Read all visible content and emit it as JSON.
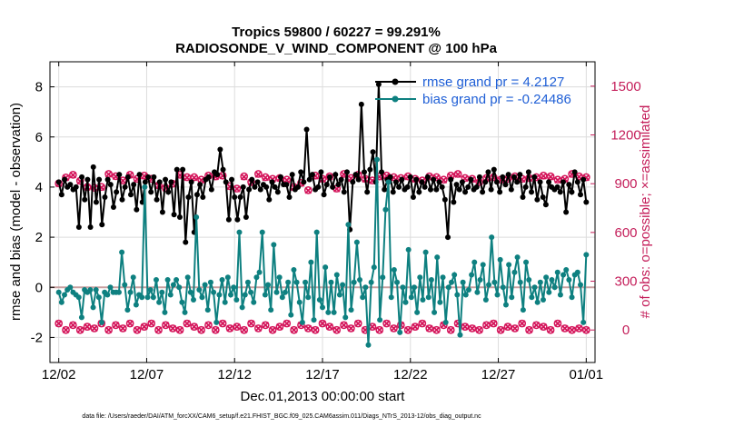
{
  "chart_data": {
    "type": "line",
    "title": "Tropics 59800 / 60227 = 99.291%",
    "subtitle": "RADIOSONDE_V_WIND_COMPONENT @ 100 hPa",
    "xlabel": "Dec.01,2013 00:00:00 start",
    "ylabel": "rmse and bias (model - observation)",
    "y2label": "# of obs: o=possible; ×=assimilated",
    "footnote": "data file: /Users/raeder/DAI/ATM_forcXX/CAM6_setup/f.e21.FHIST_BGC.f09_025.CAM6assim.011/Diags_NTrS_2013-12/obs_diag_output.nc",
    "x_ticks": [
      1,
      6,
      11,
      16,
      21,
      26,
      31
    ],
    "x_tick_labels": [
      "12/02",
      "12/07",
      "12/12",
      "12/17",
      "12/22",
      "12/27",
      "01/01"
    ],
    "xlim": [
      0.5,
      31.5
    ],
    "ylim": [
      -3,
      9
    ],
    "y_ticks": [
      -2,
      0,
      2,
      4,
      6,
      8
    ],
    "y2lim": [
      -200,
      1650
    ],
    "y2_ticks": [
      0,
      300,
      600,
      900,
      1200,
      1500
    ],
    "grid": true,
    "legend_position": "top-right",
    "colors": {
      "rmse": "#000000",
      "bias": "#0e8080",
      "obs": "#d4145a",
      "zero": "#c8a0a0",
      "legend_text": "#1f5fd6",
      "right_axis": "#c41e5a"
    },
    "series": [
      {
        "name": "rmse grand pr = 4.2127",
        "key": "rmse",
        "values": [
          4.2,
          3.7,
          4.3,
          4.0,
          4.1,
          3.9,
          4.0,
          2.4,
          4.4,
          3.5,
          4.3,
          2.4,
          4.8,
          3.4,
          4.3,
          2.5,
          3.6,
          4.3,
          4.1,
          3.2,
          3.8,
          4.5,
          3.5,
          4.0,
          4.4,
          3.7,
          4.1,
          3.1,
          4.5,
          3.4,
          4.2,
          4.4,
          3.8,
          4.4,
          3.5,
          4.2,
          3.0,
          4.3,
          3.8,
          4.2,
          2.9,
          4.7,
          2.8,
          4.7,
          1.8,
          3.6,
          4.2,
          2.2,
          3.7,
          4.1,
          3.6,
          4.3,
          4.4,
          3.9,
          4.6,
          4.5,
          5.5,
          4.7,
          4.2,
          2.7,
          4.3,
          3.6,
          2.7,
          3.6,
          4.0,
          2.8,
          3.9,
          4.3,
          4.0,
          4.2,
          3.9,
          4.1,
          4.0,
          3.5,
          4.2,
          4.0,
          3.8,
          4.4,
          4.1,
          4.1,
          3.6,
          4.5,
          3.9,
          4.0,
          4.6,
          4.2,
          6.3,
          4.3,
          4.5,
          3.9,
          4.0,
          4.6,
          3.7,
          4.1,
          4.4,
          4.0,
          4.5,
          4.1,
          4.3,
          3.8,
          4.6,
          2.3,
          4.2,
          4.5,
          4.3,
          7.3,
          4.6,
          3.8,
          4.7,
          5.4,
          4.2,
          8.1,
          4.6,
          3.9,
          4.3,
          4.4,
          3.8,
          4.2,
          4.0,
          4.3,
          3.9,
          4.0,
          4.4,
          3.6,
          4.3,
          3.8,
          4.2,
          4.0,
          4.4,
          3.9,
          4.3,
          3.9,
          4.2,
          4.0,
          3.5,
          2.0,
          4.3,
          3.4,
          4.1,
          3.9,
          4.2,
          3.8,
          4.0,
          4.3,
          3.9,
          4.0,
          4.4,
          3.8,
          4.2,
          4.6,
          3.9,
          4.7,
          4.2,
          3.8,
          4.4,
          4.1,
          4.5,
          3.9,
          4.4,
          4.2,
          4.5,
          3.6,
          4.0,
          4.6,
          3.8,
          4.4,
          3.5,
          4.2,
          3.6,
          3.3,
          4.2,
          4.0,
          3.9,
          4.0,
          3.8,
          4.2,
          3.0,
          4.1,
          3.8,
          4.6,
          4.2,
          3.7,
          4.3,
          3.4
        ],
        "color": "#000000"
      },
      {
        "name": "bias grand pr = -0.24486",
        "key": "bias",
        "values": [
          -0.2,
          -0.6,
          -0.3,
          -0.1,
          0.0,
          -0.2,
          -0.3,
          -0.4,
          -1.2,
          -0.1,
          -0.2,
          -0.1,
          -0.8,
          -0.1,
          -0.4,
          -1.4,
          -0.2,
          -0.3,
          0.0,
          -0.2,
          -0.2,
          -0.2,
          1.4,
          0.1,
          -0.9,
          -0.2,
          0.4,
          -0.7,
          -0.3,
          -0.4,
          4.0,
          -0.4,
          -0.1,
          -0.4,
          0.3,
          -0.6,
          -0.2,
          -1.0,
          0.3,
          -0.3,
          0.1,
          0.3,
          0.0,
          -0.6,
          -1.0,
          0.4,
          -0.2,
          -0.5,
          2.8,
          -0.1,
          -0.4,
          0.1,
          -0.9,
          0.2,
          -0.2,
          -1.4,
          -0.3,
          0.3,
          -0.6,
          0.4,
          -0.3,
          0.0,
          -0.5,
          2.2,
          -0.8,
          -0.3,
          0.2,
          -0.2,
          -0.6,
          0.4,
          0.6,
          2.2,
          -0.3,
          0.1,
          -0.9,
          1.7,
          -0.2,
          0.4,
          -0.4,
          -0.2,
          0.2,
          -1.1,
          0.7,
          0.2,
          -0.6,
          -1.4,
          0.2,
          -0.4,
          1.0,
          -1.3,
          2.2,
          -0.5,
          -0.8,
          0.8,
          -1.0,
          0.2,
          -1.0,
          0.5,
          -0.3,
          0.1,
          -1.2,
          2.5,
          -0.9,
          0.2,
          1.8,
          0.3,
          -0.4,
          0.0,
          -2.3,
          0.2,
          0.8,
          5.1,
          -1.3,
          0.4,
          3.1,
          4.2,
          -0.4,
          0.7,
          0.2,
          -1.8,
          0.0,
          -0.6,
          1.5,
          -0.4,
          0.0,
          -1.0,
          0.4,
          -0.5,
          1.4,
          -0.4,
          0.3,
          -1.0,
          1.2,
          -0.6,
          0.4,
          -1.4,
          0.0,
          0.2,
          0.5,
          -0.3,
          -1.9,
          0.2,
          -0.3,
          -0.1,
          0.5,
          1.0,
          -0.2,
          0.3,
          0.9,
          -0.5,
          0.1,
          2.0,
          0.2,
          -0.3,
          1.1,
          0.0,
          -0.7,
          0.9,
          -0.4,
          0.6,
          1.2,
          0.2,
          -0.9,
          1.0,
          0.3,
          -0.4,
          0.0,
          -0.6,
          0.2,
          -0.5,
          0.4,
          -0.2,
          0.3,
          0.0,
          0.6,
          -0.3,
          0.5,
          0.7,
          0.3,
          -0.4,
          0.5,
          0.6,
          0.1,
          -1.4,
          1.3
        ],
        "color": "#0e8080"
      },
      {
        "name": "possible obs (o)",
        "key": "possible_upper",
        "values": [
          902,
          938,
          955,
          918,
          880,
          875,
          880,
          960,
          946,
          920,
          955,
          930,
          950,
          930,
          890,
          875,
          900,
          955,
          940,
          940,
          925,
          950,
          945,
          950,
          885,
          870,
          945,
          910,
          960,
          940,
          930,
          935,
          925,
          880,
          905,
          860,
          950,
          930,
          945,
          870,
          960,
          935,
          955,
          930,
          920,
          945,
          950,
          940,
          935,
          945,
          930,
          920,
          945,
          940,
          925,
          950,
          960,
          935,
          930,
          910,
          935,
          940,
          925,
          930,
          945,
          930,
          935,
          940,
          950,
          945,
          925,
          930,
          960,
          945,
          940
        ],
        "color": "#d4145a"
      },
      {
        "name": "assimilated obs (×)",
        "key": "assim_upper",
        "values": [
          900,
          937,
          953,
          915,
          878,
          872,
          877,
          958,
          944,
          918,
          953,
          928,
          947,
          928,
          887,
          872,
          898,
          952,
          938,
          937,
          922,
          948,
          942,
          948,
          882,
          868,
          942,
          908,
          957,
          937,
          927,
          932,
          922,
          877,
          902,
          858,
          947,
          927,
          942,
          868,
          957,
          932,
          952,
          927,
          918,
          942,
          947,
          937,
          932,
          942,
          927,
          918,
          942,
          937,
          922,
          947,
          957,
          932,
          927,
          907,
          932,
          937,
          922,
          927,
          942,
          927,
          932,
          937,
          947,
          942,
          922,
          927,
          957,
          942,
          937
        ],
        "color": "#d4145a"
      },
      {
        "name": "possible obs lower (o)",
        "key": "possible_lower",
        "values": [
          40,
          0,
          30,
          0,
          20,
          10,
          40,
          0,
          30,
          10,
          40,
          0,
          20,
          40,
          0,
          30,
          10,
          0,
          40,
          20,
          0,
          30,
          0,
          40,
          10,
          20,
          0,
          40,
          10,
          30,
          0,
          20,
          40,
          0,
          30,
          10,
          0,
          40,
          20,
          0,
          30,
          10,
          40,
          0,
          20,
          0,
          40,
          10,
          30,
          0,
          20,
          40,
          10,
          0,
          30,
          0,
          40,
          20,
          10,
          0,
          30,
          40,
          0,
          20,
          10,
          40,
          0,
          30,
          20,
          0,
          40,
          10,
          0,
          10,
          0
        ],
        "color": "#d4145a"
      }
    ]
  }
}
